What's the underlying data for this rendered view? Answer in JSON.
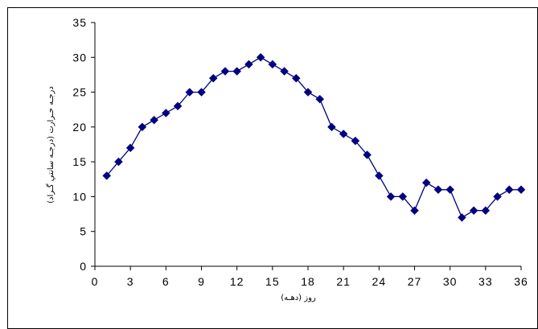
{
  "chart_data": {
    "type": "line",
    "title": "",
    "xlabel": "روز (دهـه)",
    "ylabel": "درجـه حـرارت (درجـه سانتي گـراد)",
    "xlim": [
      0,
      36
    ],
    "ylim": [
      0,
      35
    ],
    "x_ticks": [
      0,
      3,
      6,
      9,
      12,
      15,
      18,
      21,
      24,
      27,
      30,
      33,
      36
    ],
    "y_ticks": [
      0,
      5,
      10,
      15,
      20,
      25,
      30,
      35
    ],
    "grid": false,
    "legend": "none",
    "line_color": "#000080",
    "marker": "diamond",
    "series": [
      {
        "x": [
          1,
          2,
          3,
          4,
          5,
          6,
          7,
          8,
          9,
          10,
          11,
          12,
          13,
          14,
          15,
          16,
          17,
          18,
          19,
          20,
          21,
          22,
          23,
          24,
          25,
          26,
          27,
          28,
          29,
          30,
          31,
          32,
          33,
          34,
          35,
          36
        ],
        "values": [
          13,
          15,
          17,
          20,
          21,
          22,
          23,
          25,
          25,
          27,
          28,
          28,
          29,
          30,
          29,
          28,
          27,
          25,
          24,
          20,
          19,
          18,
          16,
          13,
          10,
          10,
          8,
          12,
          11,
          11,
          7,
          8,
          8,
          10,
          11,
          11
        ]
      }
    ]
  }
}
